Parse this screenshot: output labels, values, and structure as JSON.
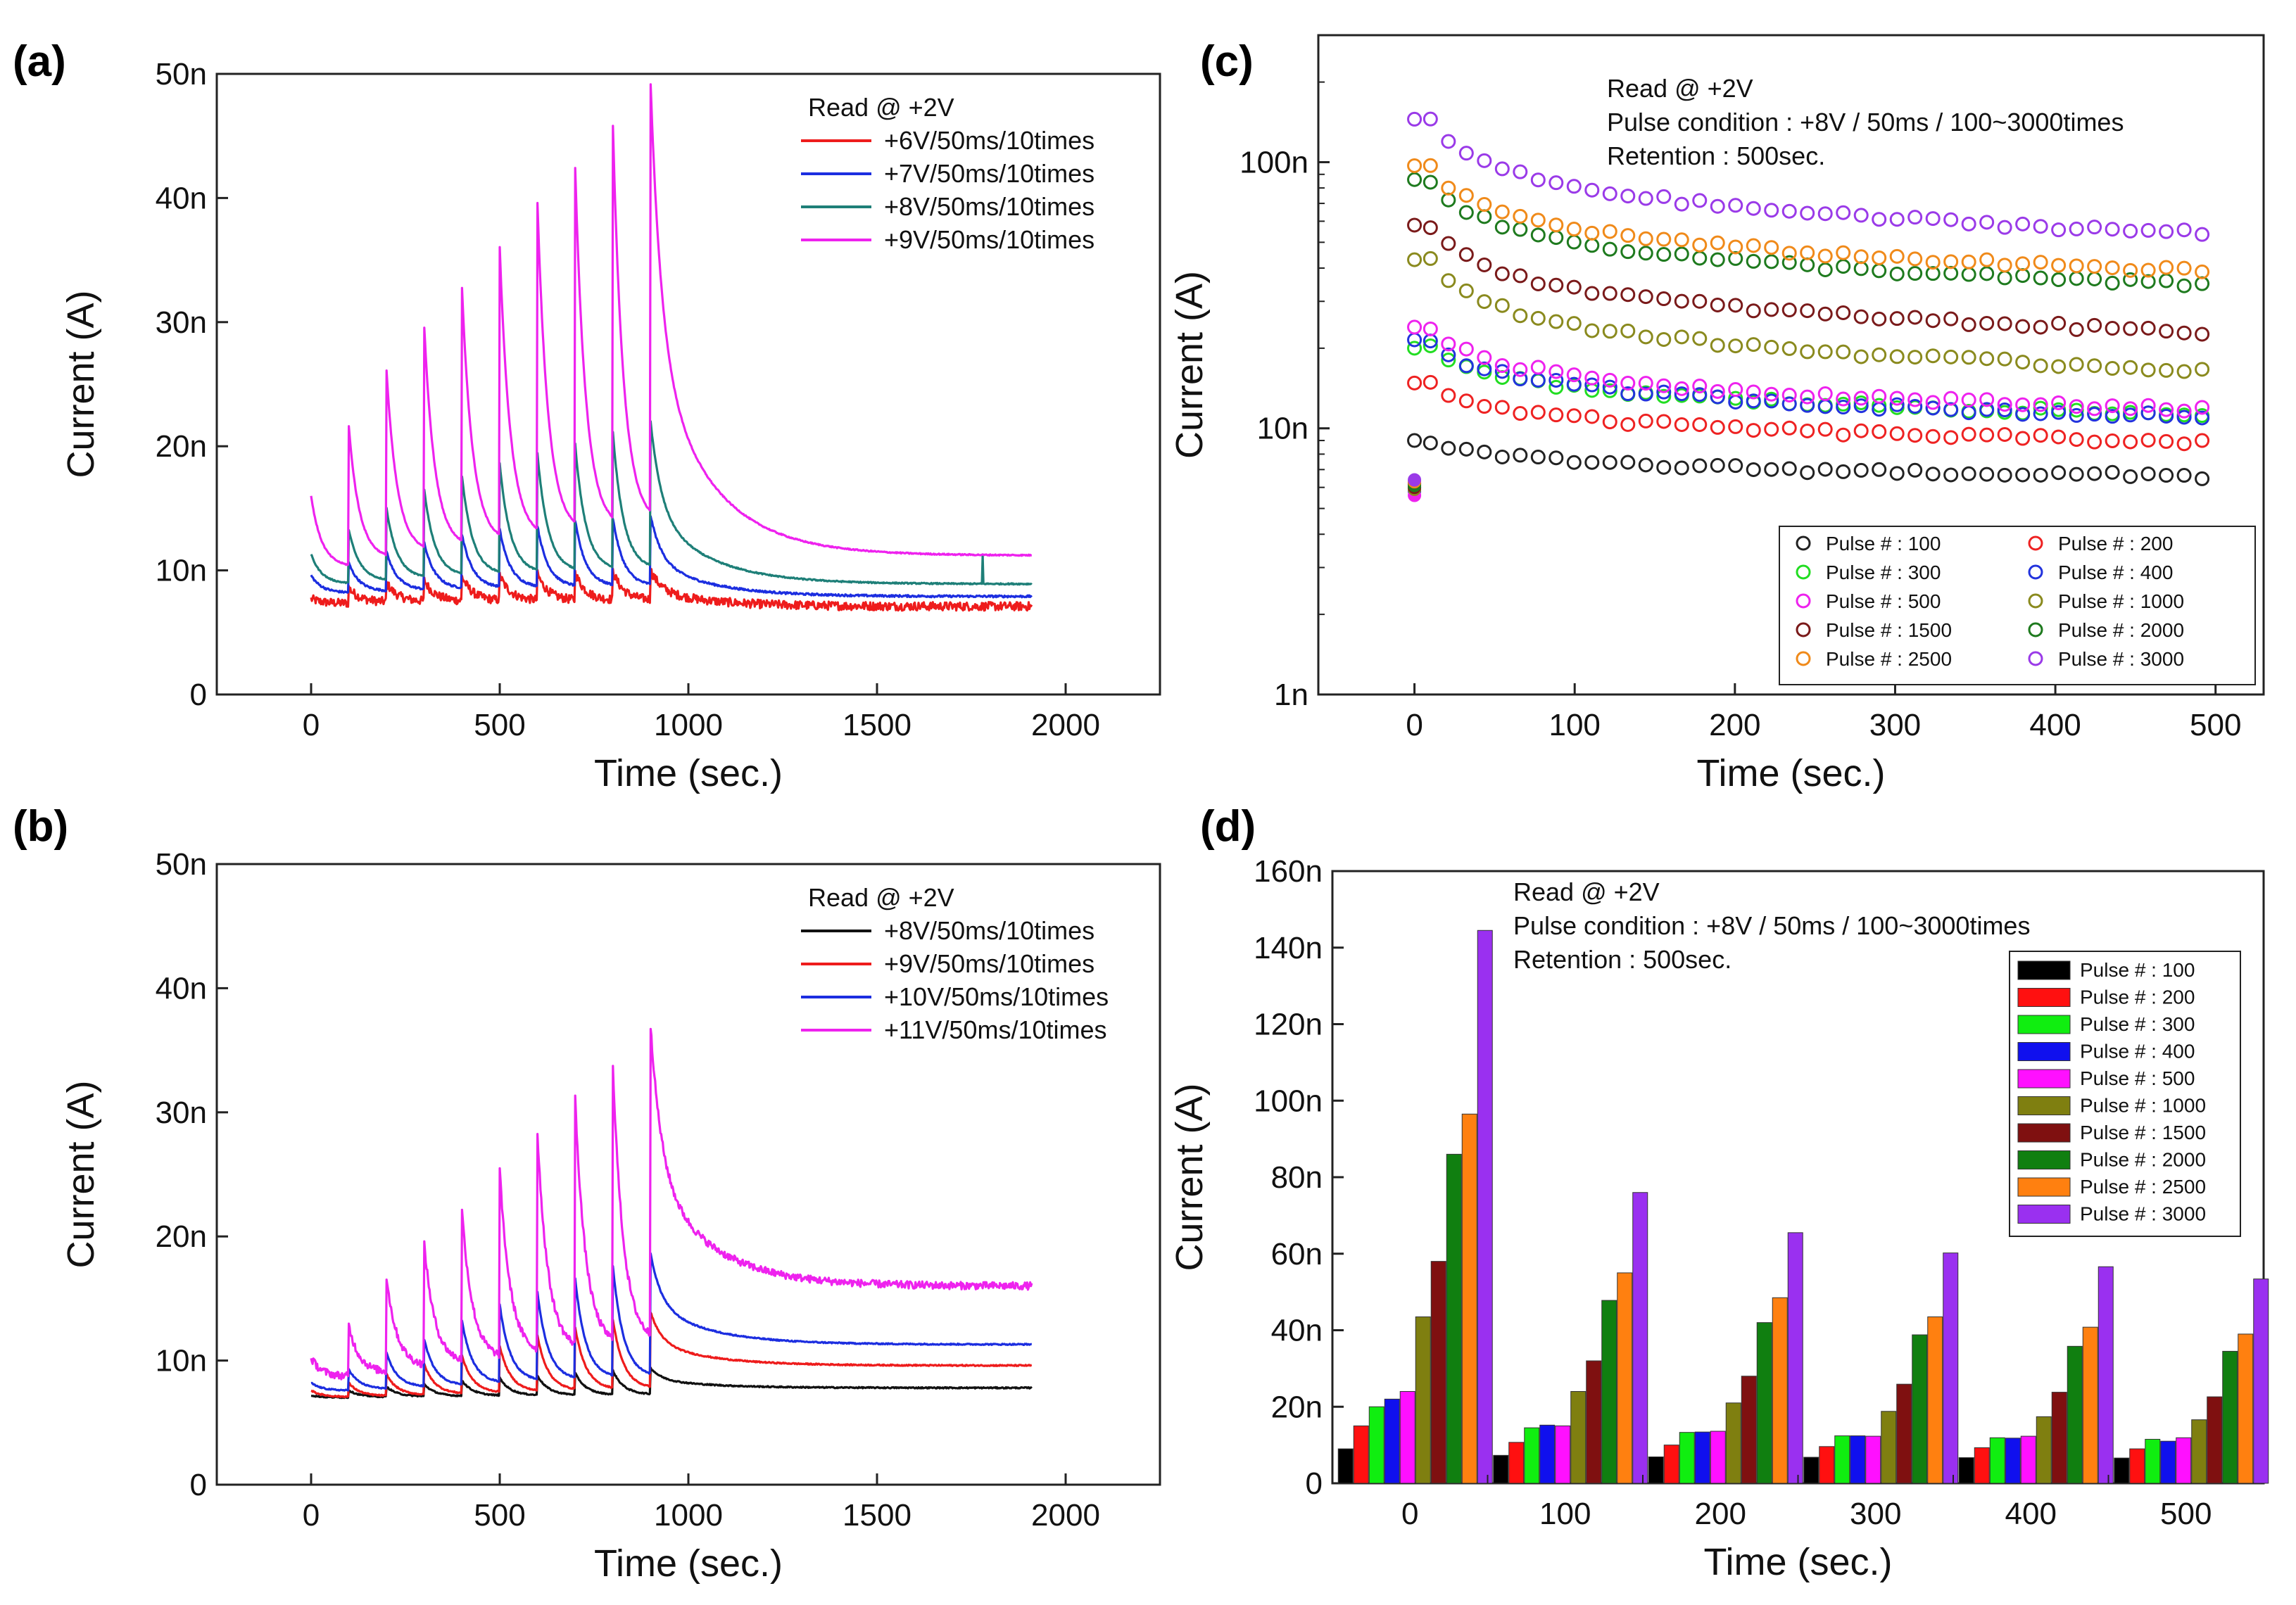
{
  "chart_data": [
    {
      "id": "a",
      "panel_label": "(a)",
      "type": "line",
      "xlabel": "Time (sec.)",
      "ylabel": "Current (A)",
      "xlim": [
        -250,
        2250
      ],
      "ylim": [
        0,
        50
      ],
      "x_ticks": [
        0,
        500,
        1000,
        1500,
        2000
      ],
      "x_tick_labels": [
        "0",
        "500",
        "1000",
        "1500",
        "2000"
      ],
      "y_ticks": [
        0,
        10,
        20,
        30,
        40,
        50
      ],
      "y_tick_labels": [
        "0",
        "10n",
        "20n",
        "30n",
        "40n",
        "50n"
      ],
      "legend_title": "Read @ +2V",
      "legend_position": "top-right",
      "pulse_times": [
        0,
        100,
        200,
        300,
        400,
        500,
        600,
        700,
        800,
        900
      ],
      "end_time": 1910,
      "series": [
        {
          "name": "+6V/50ms/10times",
          "color": "#ee1c1c",
          "base": 7.3,
          "peaks": [
            7.7,
            8.6,
            9.0,
            9.2,
            9.5,
            9.6,
            9.7,
            9.8,
            9.9,
            10.0
          ],
          "final": 7.1,
          "noise": 0.35
        },
        {
          "name": "+7V/50ms/10times",
          "color": "#1c2ee0",
          "base": 8.0,
          "peaks": [
            9.6,
            10.6,
            11.5,
            12.2,
            12.9,
            13.3,
            13.6,
            14.0,
            14.2,
            14.4
          ],
          "final": 7.9,
          "noise": 0.08
        },
        {
          "name": "+8V/50ms/10times",
          "color": "#1e7f78",
          "base": 8.6,
          "peaks": [
            11.3,
            13.3,
            15.0,
            16.5,
            17.6,
            18.6,
            19.4,
            20.2,
            21.1,
            22.0
          ],
          "final": 8.9,
          "noise": 0.05
        },
        {
          "name": "+9V/50ms/10times",
          "color": "#ee22ee",
          "base": 9.5,
          "peaks": [
            16.0,
            21.6,
            26.1,
            29.6,
            32.8,
            36.0,
            39.6,
            42.4,
            45.8,
            49.2
          ],
          "final": 11.2,
          "noise": 0.05
        }
      ]
    },
    {
      "id": "b",
      "panel_label": "(b)",
      "type": "line",
      "xlabel": "Time (sec.)",
      "ylabel": "Current (A)",
      "xlim": [
        -250,
        2250
      ],
      "ylim": [
        0,
        50
      ],
      "x_ticks": [
        0,
        500,
        1000,
        1500,
        2000
      ],
      "x_tick_labels": [
        "0",
        "500",
        "1000",
        "1500",
        "2000"
      ],
      "y_ticks": [
        0,
        10,
        20,
        30,
        40,
        50
      ],
      "y_tick_labels": [
        "0",
        "10n",
        "20n",
        "30n",
        "40n",
        "50n"
      ],
      "legend_title": "Read @ +2V",
      "legend_position": "top-right",
      "pulse_times": [
        0,
        100,
        200,
        300,
        400,
        500,
        600,
        700,
        800,
        900
      ],
      "end_time": 1910,
      "series": [
        {
          "name": "+8V/50ms/10times",
          "color": "#111111",
          "base": 7.0,
          "peaks": [
            7.2,
            7.6,
            7.9,
            8.1,
            8.4,
            8.6,
            8.8,
            9.0,
            9.2,
            9.4
          ],
          "final": 7.8,
          "noise": 0.05
        },
        {
          "name": "+9V/50ms/10times",
          "color": "#ee1c1c",
          "base": 7.0,
          "peaks": [
            7.6,
            8.2,
            8.9,
            9.7,
            10.4,
            11.2,
            12.0,
            12.7,
            13.3,
            13.9
          ],
          "final": 9.6,
          "noise": 0.05
        },
        {
          "name": "+10V/50ms/10times",
          "color": "#1c2ee0",
          "base": 7.5,
          "peaks": [
            8.2,
            9.3,
            10.6,
            11.7,
            13.2,
            14.5,
            15.5,
            16.6,
            17.6,
            18.6
          ],
          "final": 11.3,
          "noise": 0.05
        },
        {
          "name": "+11V/50ms/10times",
          "color": "#ee22ee",
          "base": 8.5,
          "peaks": [
            10.2,
            12.8,
            16.7,
            19.4,
            22.1,
            25.3,
            28.3,
            31.1,
            33.7,
            37.0
          ],
          "final": 16.0,
          "noise": 0.3
        }
      ]
    },
    {
      "id": "c",
      "panel_label": "(c)",
      "type": "scatter",
      "yscale": "log",
      "xlabel": "Time (sec.)",
      "ylabel": "Current (A)",
      "xlim": [
        -60,
        530
      ],
      "ylim": [
        1,
        300
      ],
      "x_ticks": [
        0,
        100,
        200,
        300,
        400,
        500
      ],
      "x_tick_labels": [
        "0",
        "100",
        "200",
        "300",
        "400",
        "500"
      ],
      "y_ticks": [
        1,
        10,
        100
      ],
      "y_tick_labels": [
        "1n",
        "10n",
        "100n"
      ],
      "annotations": [
        "Read @ +2V",
        "Pulse condition : +8V / 50ms / 100~3000times",
        "Retention : 500sec."
      ],
      "legend_position": "bottom-right",
      "series": [
        {
          "name": "Pulse # : 100",
          "color": "#222222",
          "start": 6.2,
          "v10": 9.0,
          "v500": 6.6
        },
        {
          "name": "Pulse # : 200",
          "color": "#ee2222",
          "start": 6.2,
          "v10": 14.8,
          "v500": 8.9
        },
        {
          "name": "Pulse # : 300",
          "color": "#22dd22",
          "start": 6.0,
          "v10": 20.0,
          "v500": 11.2
        },
        {
          "name": "Pulse # : 400",
          "color": "#2233dd",
          "start": 5.8,
          "v10": 21.5,
          "v500": 11.0
        },
        {
          "name": "Pulse # : 500",
          "color": "#ee22ee",
          "start": 5.6,
          "v10": 24.0,
          "v500": 11.8
        },
        {
          "name": "Pulse # : 1000",
          "color": "#8a8a1e",
          "start": 5.9,
          "v10": 43.0,
          "v500": 16.5
        },
        {
          "name": "Pulse # : 1500",
          "color": "#7a1a1a",
          "start": 6.0,
          "v10": 58.0,
          "v500": 23.0
        },
        {
          "name": "Pulse # : 2000",
          "color": "#1e7a1e",
          "start": 6.1,
          "v10": 86.0,
          "v500": 34.5
        },
        {
          "name": "Pulse # : 2500",
          "color": "#f08a1a",
          "start": 6.3,
          "v10": 97.0,
          "v500": 38.8
        },
        {
          "name": "Pulse # : 3000",
          "color": "#9a3ae8",
          "start": 6.4,
          "v10": 145.0,
          "v500": 54.0
        }
      ]
    },
    {
      "id": "d",
      "panel_label": "(d)",
      "type": "bar",
      "xlabel": "Time (sec.)",
      "ylabel": "Current (A)",
      "ylim": [
        0,
        160
      ],
      "categories": [
        "0",
        "100",
        "200",
        "300",
        "400",
        "500"
      ],
      "y_ticks": [
        0,
        20,
        40,
        60,
        80,
        100,
        120,
        140,
        160
      ],
      "y_tick_labels": [
        "0",
        "20n",
        "40n",
        "60n",
        "80n",
        "100n",
        "120n",
        "140n",
        "160n"
      ],
      "annotations": [
        "Read @ +2V",
        "Pulse condition : +8V / 50ms / 100~3000times",
        "Retention : 500sec."
      ],
      "legend_position": "top-right",
      "series": [
        {
          "name": "Pulse # : 100",
          "color": "#000000",
          "values": [
            9.0,
            7.3,
            6.9,
            6.8,
            6.7,
            6.6
          ]
        },
        {
          "name": "Pulse # : 200",
          "color": "#ff1010",
          "values": [
            15.0,
            10.7,
            10.0,
            9.6,
            9.3,
            9.0
          ]
        },
        {
          "name": "Pulse # : 300",
          "color": "#10ee10",
          "values": [
            20.0,
            14.5,
            13.3,
            12.4,
            11.9,
            11.5
          ]
        },
        {
          "name": "Pulse # : 400",
          "color": "#1010ee",
          "values": [
            22.0,
            15.2,
            13.4,
            12.4,
            11.8,
            11.0
          ]
        },
        {
          "name": "Pulse # : 500",
          "color": "#ff10ff",
          "values": [
            24.0,
            15.0,
            13.6,
            12.3,
            12.3,
            11.9
          ]
        },
        {
          "name": "Pulse # : 1000",
          "color": "#7f7f10",
          "values": [
            43.5,
            24.0,
            21.0,
            18.8,
            17.4,
            16.6
          ]
        },
        {
          "name": "Pulse # : 1500",
          "color": "#7f1010",
          "values": [
            58.0,
            32.0,
            28.0,
            25.9,
            23.8,
            22.6
          ]
        },
        {
          "name": "Pulse # : 2000",
          "color": "#107f10",
          "values": [
            86.0,
            47.8,
            42.0,
            38.8,
            35.8,
            34.5
          ]
        },
        {
          "name": "Pulse # : 2500",
          "color": "#ff8010",
          "values": [
            96.5,
            55.0,
            48.5,
            43.5,
            40.8,
            39.0
          ]
        },
        {
          "name": "Pulse # : 3000",
          "color": "#9a30f0",
          "values": [
            144.5,
            76.0,
            65.5,
            60.2,
            56.6,
            53.4
          ]
        }
      ]
    }
  ]
}
